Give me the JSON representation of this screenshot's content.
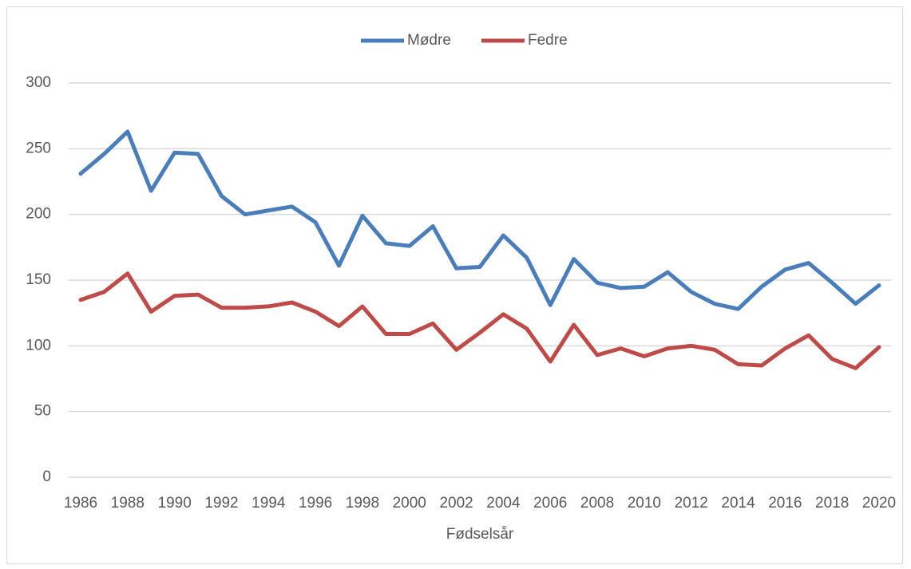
{
  "chart_data": {
    "type": "line",
    "x_label": "Fødselsår",
    "x": [
      1986,
      1987,
      1988,
      1989,
      1990,
      1991,
      1992,
      1993,
      1994,
      1995,
      1996,
      1997,
      1998,
      1999,
      2000,
      2001,
      2002,
      2003,
      2004,
      2005,
      2006,
      2007,
      2008,
      2009,
      2010,
      2011,
      2012,
      2013,
      2014,
      2015,
      2016,
      2017,
      2018,
      2019,
      2020
    ],
    "series": [
      {
        "name": "Mødre",
        "color": "#4a7ebb",
        "values": [
          231,
          246,
          263,
          218,
          247,
          246,
          214,
          200,
          203,
          206,
          194,
          161,
          199,
          178,
          176,
          191,
          159,
          160,
          184,
          167,
          131,
          166,
          148,
          144,
          145,
          156,
          141,
          132,
          128,
          145,
          158,
          163,
          148,
          132,
          146
        ]
      },
      {
        "name": "Fedre",
        "color": "#be4b48",
        "values": [
          135,
          141,
          155,
          126,
          138,
          139,
          129,
          129,
          130,
          133,
          126,
          115,
          130,
          109,
          109,
          117,
          97,
          110,
          124,
          113,
          88,
          116,
          93,
          98,
          92,
          98,
          100,
          97,
          86,
          85,
          98,
          108,
          90,
          83,
          99
        ]
      }
    ],
    "xlim": [
      1986,
      2020
    ],
    "xticks": [
      1986,
      1988,
      1990,
      1992,
      1994,
      1996,
      1998,
      2000,
      2002,
      2004,
      2006,
      2008,
      2010,
      2012,
      2014,
      2016,
      2018,
      2020
    ],
    "ylim": [
      0,
      300
    ],
    "yticks": [
      0,
      50,
      100,
      150,
      200,
      250,
      300
    ],
    "grid": true,
    "legend": "top"
  }
}
